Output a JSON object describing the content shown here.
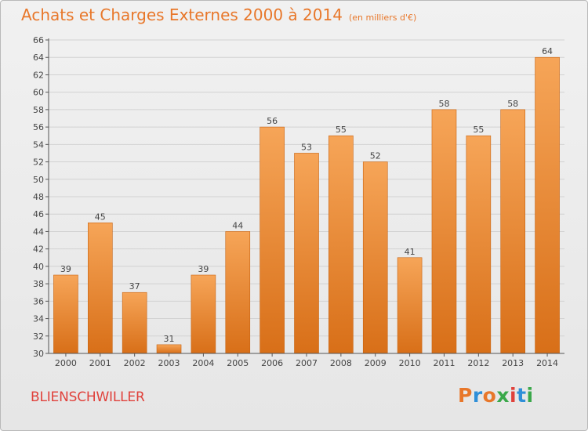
{
  "header": {
    "title": "Achats et Charges Externes 2000 à 2014",
    "subtitle": "(en milliers d'€)"
  },
  "footer": {
    "town": "BLIENSCHWILLER",
    "brand": "Proxiti",
    "brand_colors": [
      "#e8772a",
      "#2f8fd8",
      "#e8772a",
      "#3aa84a",
      "#e0413b",
      "#2f8fd8",
      "#3aa84a"
    ]
  },
  "colors": {
    "bar_top": "#f6a558",
    "bar_bottom": "#d86f18",
    "accent": "#e8772a"
  },
  "chart_data": {
    "type": "bar",
    "categories": [
      "2000",
      "2001",
      "2002",
      "2003",
      "2004",
      "2005",
      "2006",
      "2007",
      "2008",
      "2009",
      "2010",
      "2011",
      "2012",
      "2013",
      "2014"
    ],
    "values": [
      39,
      45,
      37,
      31,
      39,
      44,
      56,
      53,
      55,
      52,
      41,
      58,
      55,
      58,
      64
    ],
    "ylim": [
      30,
      66
    ],
    "yticks": [
      30,
      32,
      34,
      36,
      38,
      40,
      42,
      44,
      46,
      48,
      50,
      52,
      54,
      56,
      58,
      60,
      62,
      64,
      66
    ],
    "grid": true,
    "data_labels": true,
    "legend": "none"
  }
}
